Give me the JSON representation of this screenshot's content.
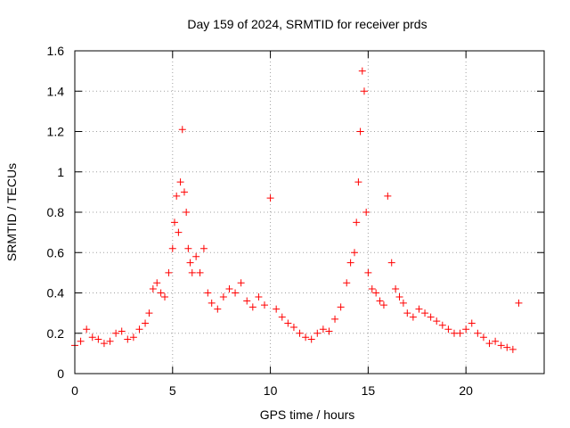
{
  "chart_data": {
    "type": "scatter",
    "title": "Day 159 of 2024, SRMTID for receiver prds",
    "xlabel": "GPS time / hours",
    "ylabel": "SRMTID / TECUs",
    "xlim": [
      0,
      24
    ],
    "ylim": [
      0,
      1.6
    ],
    "xticks": [
      0,
      5,
      10,
      15,
      20
    ],
    "yticks": [
      0,
      0.2,
      0.4,
      0.6,
      0.8,
      1,
      1.2,
      1.4,
      1.6
    ],
    "xtick_labels": [
      "0",
      "5",
      "10",
      "15",
      "20"
    ],
    "ytick_labels": [
      "0",
      "0.2",
      "0.4",
      "0.6",
      "0.8",
      "1",
      "1.2",
      "1.4",
      "1.6"
    ],
    "grid": true,
    "marker": "+",
    "color": "#ff0000",
    "series": [
      {
        "name": "SRMTID",
        "x": [
          0.0,
          0.3,
          0.6,
          0.9,
          1.2,
          1.5,
          1.8,
          2.1,
          2.4,
          2.7,
          3.0,
          3.3,
          3.6,
          3.8,
          4.0,
          4.2,
          4.4,
          4.6,
          4.8,
          5.0,
          5.1,
          5.2,
          5.3,
          5.4,
          5.5,
          5.6,
          5.7,
          5.8,
          5.9,
          6.0,
          6.2,
          6.4,
          6.6,
          6.8,
          7.0,
          7.3,
          7.6,
          7.9,
          8.2,
          8.5,
          8.8,
          9.1,
          9.4,
          9.7,
          10.0,
          10.3,
          10.6,
          10.9,
          11.2,
          11.5,
          11.8,
          12.1,
          12.4,
          12.7,
          13.0,
          13.3,
          13.6,
          13.9,
          14.1,
          14.3,
          14.4,
          14.5,
          14.6,
          14.7,
          14.8,
          14.9,
          15.0,
          15.2,
          15.4,
          15.6,
          15.8,
          16.0,
          16.2,
          16.4,
          16.6,
          16.8,
          17.0,
          17.3,
          17.6,
          17.9,
          18.2,
          18.5,
          18.8,
          19.1,
          19.4,
          19.7,
          20.0,
          20.3,
          20.6,
          20.9,
          21.2,
          21.5,
          21.8,
          22.1,
          22.4,
          22.7
        ],
        "y": [
          0.14,
          0.16,
          0.22,
          0.18,
          0.17,
          0.15,
          0.16,
          0.2,
          0.21,
          0.17,
          0.18,
          0.22,
          0.25,
          0.3,
          0.42,
          0.45,
          0.4,
          0.38,
          0.5,
          0.62,
          0.75,
          0.88,
          0.7,
          0.95,
          1.21,
          0.9,
          0.8,
          0.62,
          0.55,
          0.5,
          0.58,
          0.5,
          0.62,
          0.4,
          0.35,
          0.32,
          0.38,
          0.42,
          0.4,
          0.45,
          0.36,
          0.33,
          0.38,
          0.34,
          0.87,
          0.32,
          0.28,
          0.25,
          0.23,
          0.2,
          0.18,
          0.17,
          0.2,
          0.22,
          0.21,
          0.27,
          0.33,
          0.45,
          0.55,
          0.6,
          0.75,
          0.95,
          1.2,
          1.5,
          1.4,
          0.8,
          0.5,
          0.42,
          0.4,
          0.36,
          0.34,
          0.88,
          0.55,
          0.42,
          0.38,
          0.35,
          0.3,
          0.28,
          0.32,
          0.3,
          0.28,
          0.26,
          0.24,
          0.22,
          0.2,
          0.2,
          0.22,
          0.25,
          0.2,
          0.18,
          0.15,
          0.16,
          0.14,
          0.13,
          0.12,
          0.35
        ]
      }
    ]
  }
}
